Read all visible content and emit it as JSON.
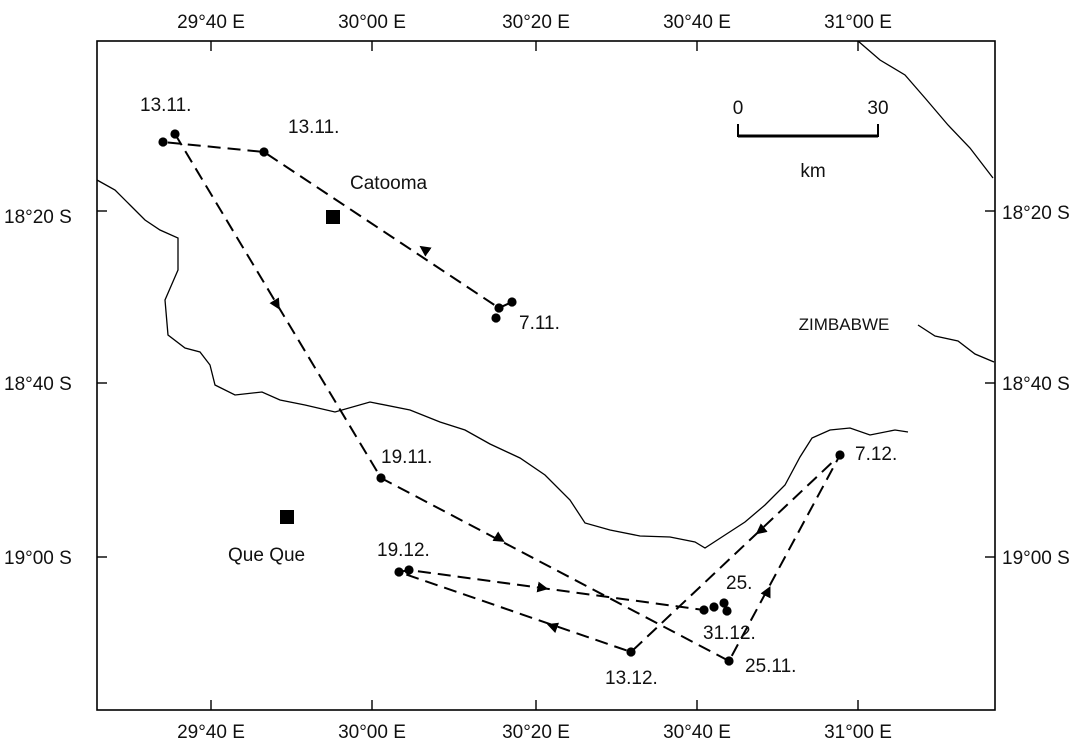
{
  "axes": {
    "top_ticks": [
      "29°40 E",
      "30°00 E",
      "30°20 E",
      "30°40 E",
      "31°00 E"
    ],
    "bottom_ticks": [
      "29°40 E",
      "30°00 E",
      "30°20 E",
      "30°40 E",
      "31°00 E"
    ],
    "left_ticks": [
      "18°20 S",
      "18°40 S",
      "19°00 S"
    ],
    "right_ticks": [
      "18°20 S",
      "18°40 S",
      "19°00 S"
    ]
  },
  "country_label": "ZIMBABWE",
  "towns": [
    {
      "name": "Catooma"
    },
    {
      "name": "Que Que"
    }
  ],
  "scale_bar": {
    "start": "0",
    "end": "30",
    "unit": "km"
  },
  "date_labels": [
    "13.11.",
    "13.11.",
    "7.11.",
    "19.11.",
    "19.12.",
    "25.",
    "31.12.",
    "13.12.",
    "25.11.",
    "7.12."
  ]
}
